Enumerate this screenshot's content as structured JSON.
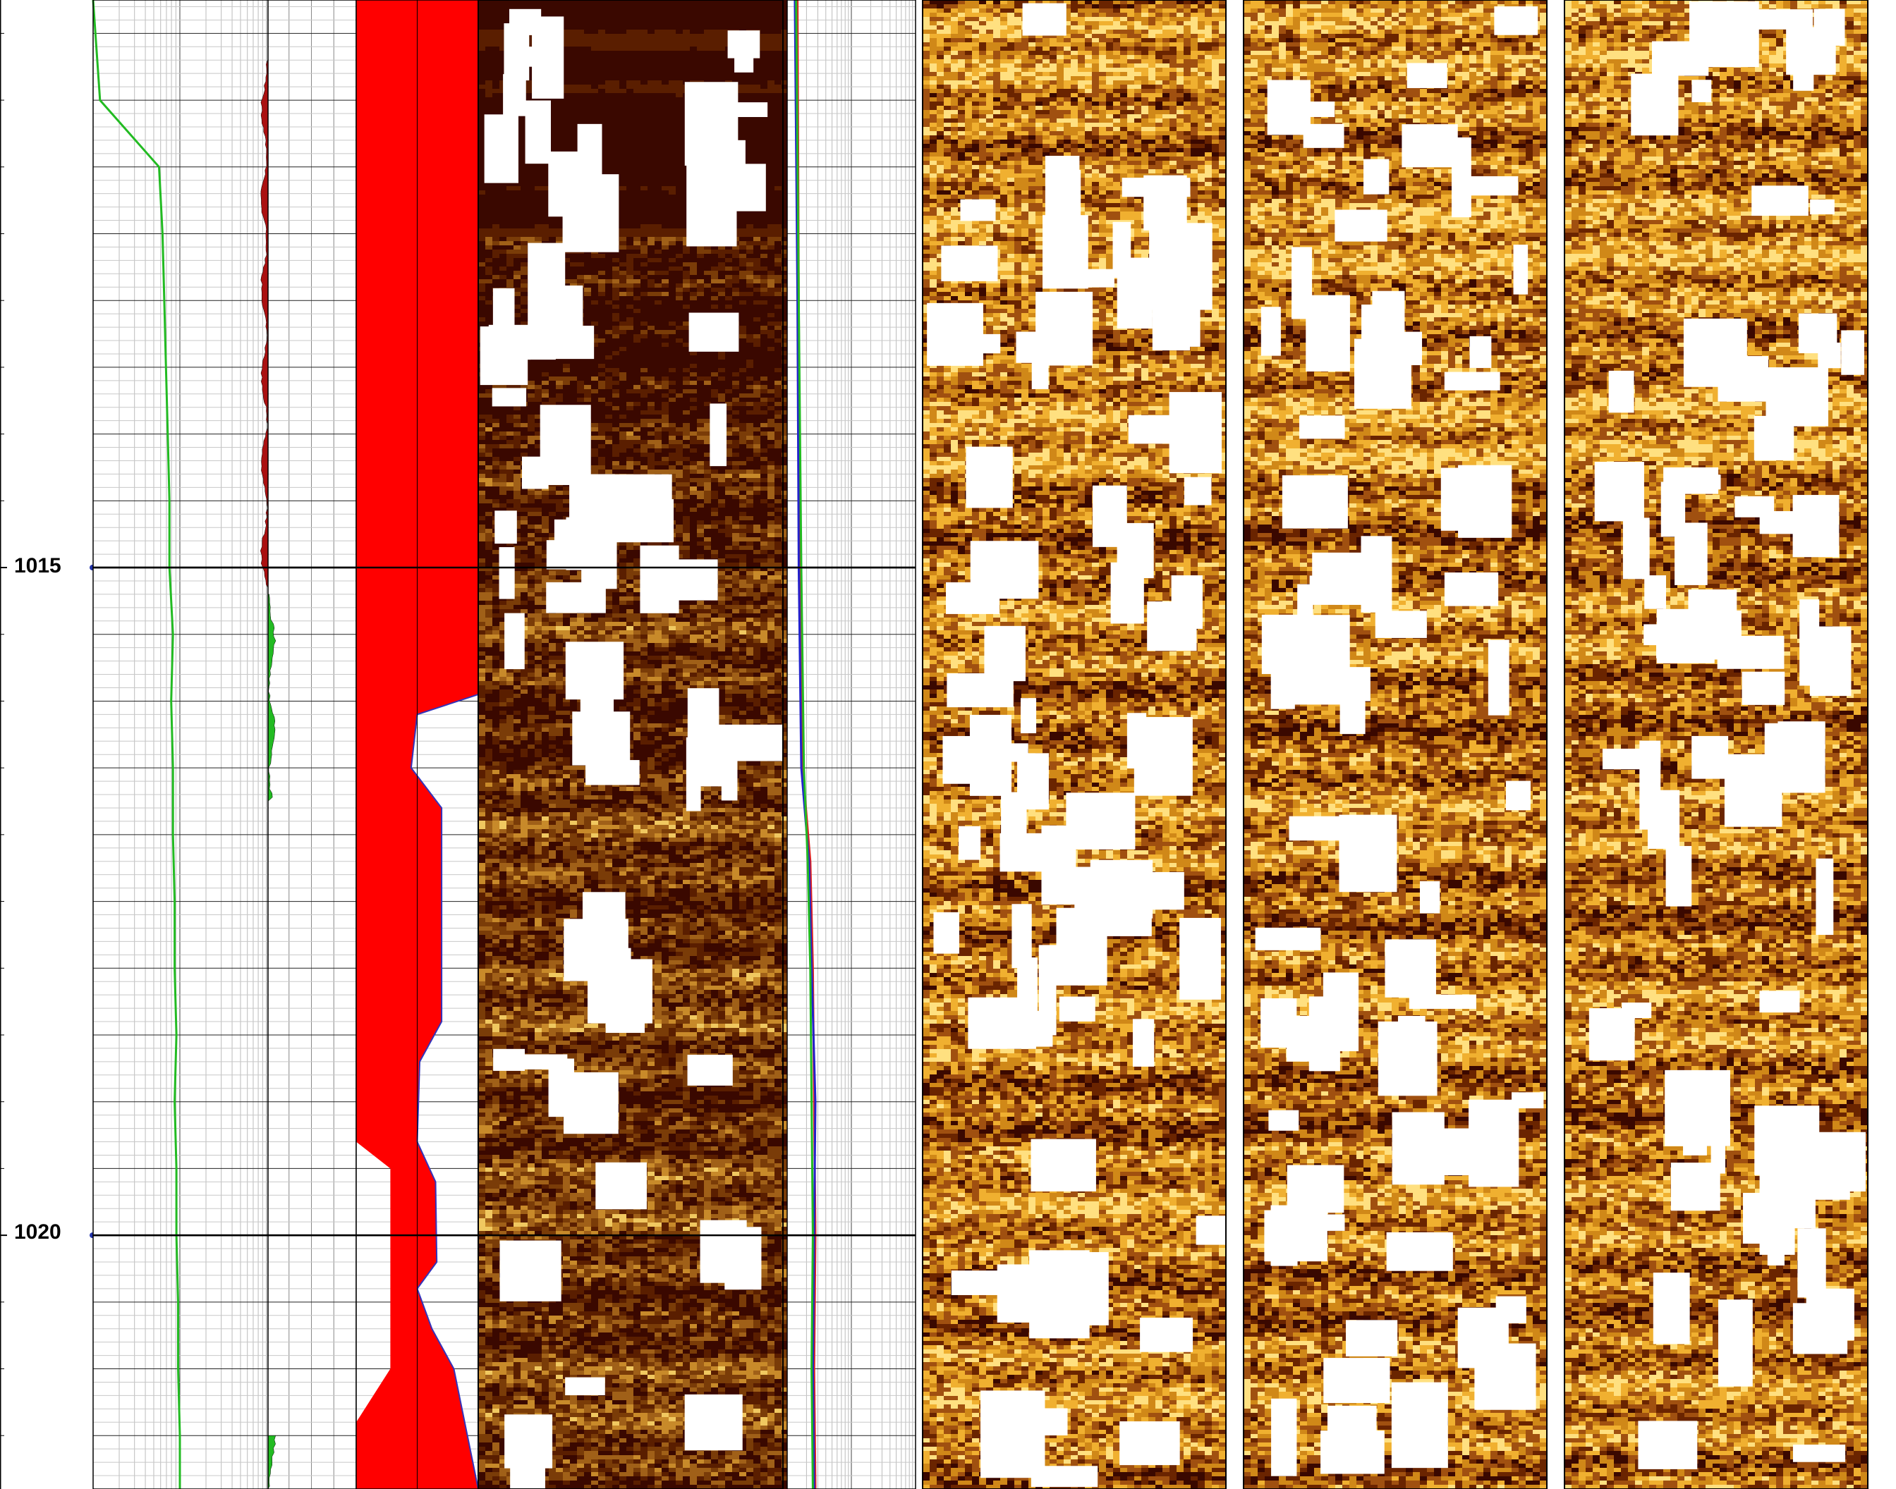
{
  "chart_data": {
    "type": "well_log",
    "depth_axis": {
      "range": [
        1010.75,
        1021.9
      ],
      "tick_labels": [
        "1015",
        "1020"
      ],
      "major_depths": [
        1015,
        1020
      ],
      "minor_step": 0.5
    },
    "tracks": [
      {
        "id": "track-1-gr",
        "kind": "curves",
        "grid": "log",
        "curves": [
          {
            "color": "#22bb22",
            "depth": [
              1010.75,
              1011.5,
              1012.0,
              1012.5,
              1013.0,
              1013.5,
              1014.0,
              1014.5,
              1015.0,
              1015.5,
              1016.0,
              1016.5,
              1017.0,
              1017.5,
              1018.0,
              1018.5,
              1019.0,
              1019.5,
              1020.0,
              1020.5,
              1021.0,
              1021.5,
              1021.9
            ],
            "value": [
              0.0,
              0.04,
              0.38,
              0.4,
              0.41,
              0.42,
              0.43,
              0.44,
              0.44,
              0.46,
              0.45,
              0.46,
              0.46,
              0.47,
              0.47,
              0.48,
              0.47,
              0.48,
              0.48,
              0.49,
              0.49,
              0.5,
              0.5
            ]
          }
        ]
      },
      {
        "id": "track-2-separation",
        "kind": "fill",
        "fill_segments": [
          {
            "color": "#aa1111",
            "from": 1011.2,
            "to": 1015.15,
            "side": "left"
          },
          {
            "color": "#22bb22",
            "from": 1015.2,
            "to": 1016.75,
            "side": "right"
          },
          {
            "color": "#22bb22",
            "from": 1021.5,
            "to": 1021.9,
            "side": "right"
          }
        ]
      },
      {
        "id": "track-3-red-fill",
        "kind": "fill",
        "fill_color": "#ff0000",
        "boundary_curves": [
          {
            "depth": [
              1010.75,
              1018.6,
              1019.3,
              1019.5,
              1021.0,
              1021.4,
              1021.7,
              1021.9
            ],
            "value": [
              0.0,
              0.0,
              0.0,
              0.28,
              0.28,
              0.0,
              0.0,
              0.0
            ]
          },
          {
            "color": "#3333bb",
            "depth": [
              1010.75,
              1015.95,
              1016.1,
              1016.5,
              1016.8,
              1018.4,
              1018.7,
              1019.3,
              1019.6,
              1020.2,
              1020.4,
              1020.7,
              1021.0,
              1021.9
            ],
            "value": [
              1.0,
              1.0,
              0.5,
              0.45,
              0.7,
              0.7,
              0.52,
              0.5,
              0.65,
              0.66,
              0.5,
              0.62,
              0.8,
              1.0
            ]
          }
        ]
      },
      {
        "id": "track-4-static-image",
        "kind": "image",
        "palette": [
          "#3a0800",
          "#5a1e00",
          "#7a3c08",
          "#a06018",
          "#c88a2a",
          "#f0c860",
          "#ffffff"
        ],
        "zones": [
          {
            "from": 1010.75,
            "to": 1012.5,
            "mean": 0.02
          },
          {
            "from": 1012.5,
            "to": 1014.2,
            "mean": 0.1
          },
          {
            "from": 1014.2,
            "to": 1016.8,
            "mean": 0.28
          },
          {
            "from": 1016.8,
            "to": 1021.9,
            "mean": 0.36
          }
        ]
      },
      {
        "id": "track-5-calipers",
        "kind": "curves",
        "grid": "log",
        "curves": [
          {
            "color": "#dd2222",
            "depth": [
              1010.75,
              1013.0,
              1015.0,
              1016.5,
              1017.2,
              1018.0,
              1019.0,
              1020.0,
              1021.0,
              1021.9
            ],
            "value": [
              0.08,
              0.09,
              0.1,
              0.12,
              0.18,
              0.2,
              0.21,
              0.22,
              0.21,
              0.22
            ]
          },
          {
            "color": "#2222cc",
            "depth": [
              1010.75,
              1013.0,
              1015.0,
              1016.5,
              1017.2,
              1018.0,
              1019.0,
              1020.0,
              1021.0,
              1021.9
            ],
            "value": [
              0.06,
              0.08,
              0.09,
              0.11,
              0.17,
              0.19,
              0.22,
              0.21,
              0.2,
              0.21
            ]
          },
          {
            "color": "#22bb22",
            "depth": [
              1010.75,
              1013.0,
              1015.0,
              1016.5,
              1017.2,
              1018.0,
              1019.0,
              1020.0,
              1021.0,
              1021.9
            ],
            "value": [
              0.07,
              0.09,
              0.11,
              0.13,
              0.16,
              0.18,
              0.19,
              0.2,
              0.19,
              0.2
            ]
          }
        ]
      },
      {
        "id": "track-6-dynamic-image-a",
        "kind": "image",
        "palette": [
          "#3a0800",
          "#6a2400",
          "#a05010",
          "#d08818",
          "#f0b030",
          "#ffe080",
          "#ffffff"
        ],
        "zones": [
          {
            "from": 1010.75,
            "to": 1011.4,
            "mean": 0.55
          },
          {
            "from": 1011.4,
            "to": 1014.3,
            "mean": 0.58
          },
          {
            "from": 1014.3,
            "to": 1016.0,
            "mean": 0.5
          },
          {
            "from": 1016.0,
            "to": 1021.9,
            "mean": 0.52
          }
        ]
      },
      {
        "id": "track-7-dynamic-image-b",
        "kind": "image",
        "palette": [
          "#3a0800",
          "#6a2400",
          "#a05010",
          "#d08818",
          "#f0b030",
          "#ffe080",
          "#ffffff"
        ],
        "zones": [
          {
            "from": 1010.75,
            "to": 1011.4,
            "mean": 0.55
          },
          {
            "from": 1011.4,
            "to": 1014.3,
            "mean": 0.58
          },
          {
            "from": 1014.3,
            "to": 1016.0,
            "mean": 0.5
          },
          {
            "from": 1016.0,
            "to": 1021.9,
            "mean": 0.52
          }
        ]
      },
      {
        "id": "track-8-dynamic-image-c",
        "kind": "image",
        "palette": [
          "#3a0800",
          "#6a2400",
          "#a05010",
          "#d08818",
          "#f0b030",
          "#ffe080",
          "#ffffff"
        ],
        "zones": [
          {
            "from": 1010.75,
            "to": 1011.4,
            "mean": 0.55
          },
          {
            "from": 1011.4,
            "to": 1014.3,
            "mean": 0.58
          },
          {
            "from": 1014.3,
            "to": 1016.0,
            "mean": 0.5
          },
          {
            "from": 1016.0,
            "to": 1021.9,
            "mean": 0.52
          }
        ]
      }
    ],
    "grid": true
  }
}
